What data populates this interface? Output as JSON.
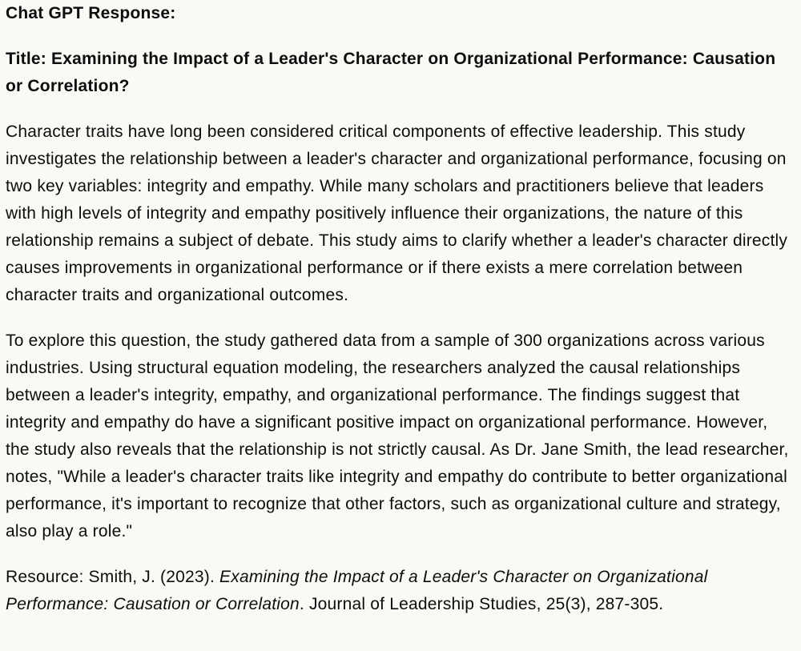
{
  "page": {
    "background_color": "#faf9f5",
    "text_color": "#0d0d0d"
  },
  "response": {
    "header": "Chat GPT Response:",
    "title": "Title: Examining the Impact of a Leader's Character on Organizational Performance: Causation or Correlation?",
    "paragraphs": [
      "Character traits have long been considered critical components of effective leadership. This study investigates the relationship between a leader's character and organizational performance, focusing on two key variables: integrity and empathy. While many scholars and practitioners believe that leaders with high levels of integrity and empathy positively influence their organizations, the nature of this relationship remains a subject of debate. This study aims to clarify whether a leader's character directly causes improvements in organizational performance or if there exists a mere correlation between character traits and organizational outcomes.",
      "To explore this question, the study gathered data from a sample of 300 organizations across various industries. Using structural equation modeling, the researchers analyzed the causal relationships between a leader's integrity, empathy, and organizational performance. The findings suggest that integrity and empathy do have a significant positive impact on organizational performance. However, the study also reveals that the relationship is not strictly causal. As Dr. Jane Smith, the lead researcher, notes, \"While a leader's character traits like integrity and empathy do contribute to better organizational performance, it's important to recognize that other factors, such as organizational culture and strategy, also play a role.\""
    ],
    "resource": {
      "prefix": "Resource: Smith, J. (2023). ",
      "italic_title": "Examining the Impact of a Leader's Character on Organizational Performance: Causation or Correlation",
      "suffix": ". Journal of Leadership Studies, 25(3), 287-305."
    }
  }
}
